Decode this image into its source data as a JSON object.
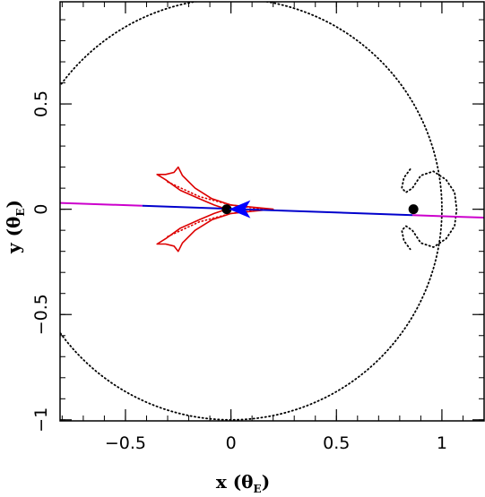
{
  "chart_data": {
    "type": "line",
    "title": "",
    "xlabel": "x (θE)",
    "ylabel": "y (θE)",
    "xlabel_parts": {
      "main": "x (θ",
      "sub": "E",
      "close": ")"
    },
    "ylabel_parts": {
      "main": "y (θ",
      "sub": "E",
      "close": ")"
    },
    "xlim": [
      -0.81,
      1.2
    ],
    "ylim": [
      -1.005,
      0.985
    ],
    "x_ticks": [
      {
        "value": -0.5,
        "label": "−0.5"
      },
      {
        "value": 0,
        "label": "0"
      },
      {
        "value": 0.5,
        "label": "0.5"
      },
      {
        "value": 1,
        "label": "1"
      }
    ],
    "y_ticks": [
      {
        "value": -1,
        "label": "−1"
      },
      {
        "value": -0.5,
        "label": "−0.5"
      },
      {
        "value": 0,
        "label": "0"
      },
      {
        "value": 0.5,
        "label": "0.5"
      }
    ],
    "x_minor_step": 0.1,
    "y_minor_step": 0.1,
    "grid": false,
    "legend": "none",
    "colors": {
      "critical_curve": "#000000",
      "caustic": "#dd0000",
      "trajectory_before": "#cc00cc",
      "trajectory_after": "#0000cc",
      "arrow": "#0000ff",
      "lens": "#000000"
    },
    "lenses": [
      {
        "name": "lens-1",
        "x": -0.02,
        "y": 0.0
      },
      {
        "name": "lens-2",
        "x": 0.865,
        "y": 0.0
      }
    ],
    "trajectory": {
      "start": {
        "x": -0.81,
        "y": 0.03
      },
      "end": {
        "x": 1.2,
        "y": -0.04
      },
      "color_change_x": -0.42
    },
    "arrow": {
      "x": 0.05,
      "y": 0.0,
      "direction": "left"
    },
    "critical_curve": {
      "style": "dotted",
      "outer_circle": {
        "cx": 0.0,
        "cy": 0.0,
        "r": 1.0
      },
      "planetary_loop": [
        [
          0.85,
          0.19
        ],
        [
          0.82,
          0.15
        ],
        [
          0.81,
          0.1
        ],
        [
          0.83,
          0.08
        ],
        [
          0.86,
          0.1
        ],
        [
          0.9,
          0.16
        ],
        [
          0.96,
          0.18
        ],
        [
          1.02,
          0.14
        ],
        [
          1.06,
          0.08
        ],
        [
          1.07,
          0.0
        ],
        [
          1.06,
          -0.08
        ],
        [
          1.02,
          -0.14
        ],
        [
          0.96,
          -0.18
        ],
        [
          0.9,
          -0.16
        ],
        [
          0.86,
          -0.1
        ],
        [
          0.83,
          -0.08
        ],
        [
          0.81,
          -0.1
        ],
        [
          0.82,
          -0.15
        ],
        [
          0.85,
          -0.19
        ]
      ]
    },
    "caustic": {
      "style": "solid",
      "solid_curve": [
        [
          -0.35,
          0.165
        ],
        [
          -0.31,
          0.165
        ],
        [
          -0.27,
          0.175
        ],
        [
          -0.25,
          0.2
        ],
        [
          -0.23,
          0.16
        ],
        [
          -0.17,
          0.1
        ],
        [
          -0.09,
          0.05
        ],
        [
          0.0,
          0.02
        ],
        [
          0.1,
          0.01
        ],
        [
          0.2,
          0.0
        ],
        [
          0.1,
          -0.01
        ],
        [
          0.0,
          -0.02
        ],
        [
          -0.09,
          -0.05
        ],
        [
          -0.17,
          -0.1
        ],
        [
          -0.23,
          -0.16
        ],
        [
          -0.25,
          -0.2
        ],
        [
          -0.27,
          -0.175
        ],
        [
          -0.31,
          -0.165
        ],
        [
          -0.35,
          -0.165
        ],
        [
          -0.31,
          -0.14
        ],
        [
          -0.24,
          -0.09
        ],
        [
          -0.15,
          -0.05
        ],
        [
          -0.08,
          -0.02
        ],
        [
          -0.02,
          0.0
        ],
        [
          -0.08,
          0.02
        ],
        [
          -0.15,
          0.05
        ],
        [
          -0.24,
          0.09
        ],
        [
          -0.31,
          0.14
        ],
        [
          -0.35,
          0.165
        ]
      ],
      "dotted_segments": [
        [
          [
            -0.3,
            0.13
          ],
          [
            -0.15,
            0.06
          ],
          [
            0.0,
            0.02
          ],
          [
            0.15,
            0.0
          ]
        ],
        [
          [
            -0.3,
            -0.13
          ],
          [
            -0.15,
            -0.06
          ],
          [
            0.0,
            -0.02
          ],
          [
            0.15,
            0.0
          ]
        ]
      ]
    }
  }
}
